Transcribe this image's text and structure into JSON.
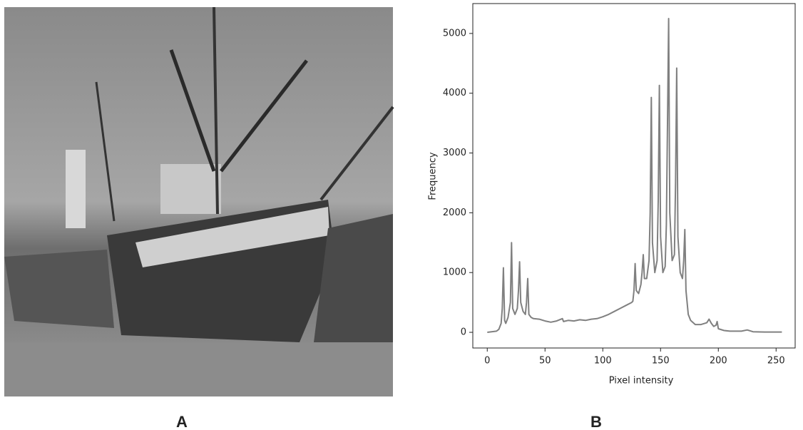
{
  "figure": {
    "panel_labels": [
      "A",
      "B"
    ]
  },
  "chart_data": {
    "type": "line",
    "xlabel": "Pixel intensity",
    "ylabel": "Frequency",
    "color": "#808080",
    "x": [
      0,
      8,
      10,
      12,
      13,
      14,
      15,
      16,
      18,
      20,
      21,
      22,
      24,
      26,
      27,
      28,
      29,
      31,
      33,
      34,
      35,
      36,
      38,
      40,
      45,
      50,
      55,
      60,
      65,
      66,
      70,
      75,
      80,
      85,
      90,
      95,
      100,
      105,
      110,
      115,
      120,
      125,
      126,
      127,
      128,
      129,
      131,
      133,
      134,
      135,
      136,
      138,
      140,
      141,
      142,
      143,
      145,
      147,
      148,
      149,
      150,
      152,
      154,
      155,
      156,
      157,
      158,
      160,
      162,
      163,
      164,
      165,
      167,
      169,
      170,
      171,
      172,
      174,
      176,
      180,
      185,
      190,
      192,
      194,
      196,
      198,
      199,
      200,
      205,
      210,
      220,
      225,
      230,
      240,
      250,
      255
    ],
    "values": [
      0,
      20,
      50,
      150,
      400,
      1080,
      200,
      150,
      250,
      500,
      1500,
      400,
      300,
      400,
      700,
      1180,
      500,
      350,
      300,
      500,
      900,
      300,
      250,
      230,
      220,
      190,
      170,
      190,
      230,
      180,
      200,
      190,
      210,
      200,
      220,
      230,
      260,
      300,
      350,
      400,
      450,
      500,
      520,
      700,
      1150,
      700,
      650,
      800,
      1000,
      1300,
      900,
      900,
      1200,
      2000,
      3930,
      1500,
      1000,
      1200,
      2200,
      4130,
      1600,
      1000,
      1100,
      1800,
      3500,
      5250,
      2000,
      1200,
      1300,
      2500,
      4420,
      1600,
      1000,
      900,
      1200,
      1720,
      700,
      300,
      200,
      130,
      130,
      160,
      220,
      150,
      100,
      120,
      180,
      60,
      30,
      20,
      20,
      40,
      10,
      5,
      5,
      5
    ],
    "xlim": [
      -12.5,
      266.5
    ],
    "ylim": [
      -262,
      5500
    ],
    "xticks": [
      0,
      50,
      100,
      150,
      200,
      250
    ],
    "yticks": [
      0,
      1000,
      2000,
      3000,
      4000,
      5000
    ]
  }
}
